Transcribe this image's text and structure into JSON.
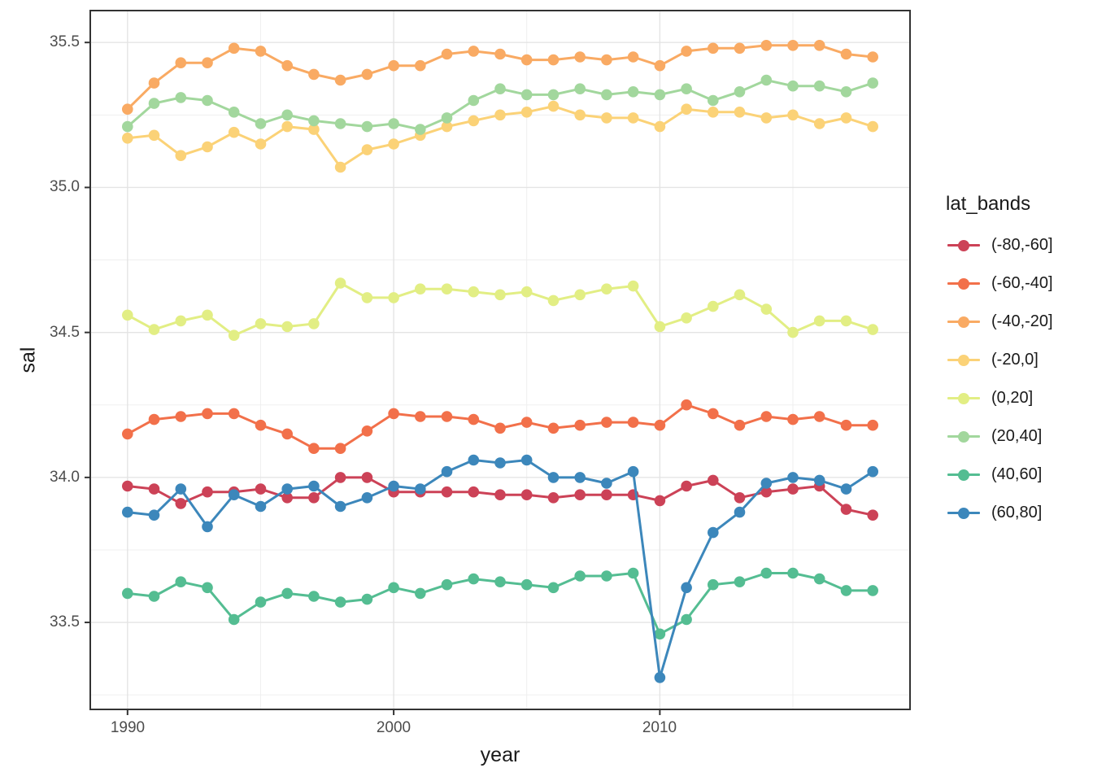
{
  "chart_data": {
    "type": "line",
    "title": "",
    "xlabel": "year",
    "ylabel": "sal",
    "legend": {
      "title": "lat_bands",
      "position": "right"
    },
    "grid": true,
    "x_domain": [
      1988.6,
      2019.4
    ],
    "y_domain": [
      33.2,
      35.61
    ],
    "x_ticks": {
      "major": [
        1990,
        2000,
        2010
      ],
      "minor": [
        1995,
        2005,
        2015
      ],
      "labels": [
        "1990",
        "2000",
        "2010"
      ]
    },
    "y_ticks": {
      "major": [
        33.5,
        34.0,
        34.5,
        35.0,
        35.5
      ],
      "minor": [
        33.25,
        33.75,
        34.25,
        34.75,
        35.25
      ],
      "labels": [
        "33.5",
        "34.0",
        "34.5",
        "35.0",
        "35.5"
      ]
    },
    "x": [
      1990,
      1991,
      1992,
      1993,
      1994,
      1995,
      1996,
      1997,
      1998,
      1999,
      2000,
      2001,
      2002,
      2003,
      2004,
      2005,
      2006,
      2007,
      2008,
      2009,
      2010,
      2011,
      2012,
      2013,
      2014,
      2015,
      2016,
      2017,
      2018
    ],
    "series": [
      {
        "name": "(-80,-60]",
        "color": "#cc4257",
        "values": [
          33.97,
          33.96,
          33.91,
          33.95,
          33.95,
          33.96,
          33.93,
          33.93,
          34.0,
          34.0,
          33.95,
          33.95,
          33.95,
          33.95,
          33.94,
          33.94,
          33.93,
          33.94,
          33.94,
          33.94,
          33.92,
          33.97,
          33.99,
          33.93,
          33.95,
          33.96,
          33.97,
          33.89,
          33.87
        ]
      },
      {
        "name": "(-60,-40]",
        "color": "#f2704a",
        "values": [
          34.15,
          34.2,
          34.21,
          34.22,
          34.22,
          34.18,
          34.15,
          34.1,
          34.1,
          34.16,
          34.22,
          34.21,
          34.21,
          34.2,
          34.17,
          34.19,
          34.17,
          34.18,
          34.19,
          34.19,
          34.18,
          34.25,
          34.22,
          34.18,
          34.21,
          34.2,
          34.21,
          34.18,
          34.18
        ]
      },
      {
        "name": "(-40,-20]",
        "color": "#f9aa63",
        "values": [
          35.27,
          35.36,
          35.43,
          35.43,
          35.48,
          35.47,
          35.42,
          35.39,
          35.37,
          35.39,
          35.42,
          35.42,
          35.46,
          35.47,
          35.46,
          35.44,
          35.44,
          35.45,
          35.44,
          35.45,
          35.42,
          35.47,
          35.48,
          35.48,
          35.49,
          35.49,
          35.49,
          35.46,
          35.45
        ]
      },
      {
        "name": "(-20,0]",
        "color": "#fbd277",
        "values": [
          35.17,
          35.18,
          35.11,
          35.14,
          35.19,
          35.15,
          35.21,
          35.2,
          35.07,
          35.13,
          35.15,
          35.18,
          35.21,
          35.23,
          35.25,
          35.26,
          35.28,
          35.25,
          35.24,
          35.24,
          35.21,
          35.27,
          35.26,
          35.26,
          35.24,
          35.25,
          35.22,
          35.24,
          35.21
        ]
      },
      {
        "name": "(0,20]",
        "color": "#e2ee84",
        "values": [
          34.56,
          34.51,
          34.54,
          34.56,
          34.49,
          34.53,
          34.52,
          34.53,
          34.67,
          34.62,
          34.62,
          34.65,
          34.65,
          34.64,
          34.63,
          34.64,
          34.61,
          34.63,
          34.65,
          34.66,
          34.52,
          34.55,
          34.59,
          34.63,
          34.58,
          34.5,
          34.54,
          34.54,
          34.51
        ]
      },
      {
        "name": "(20,40]",
        "color": "#a2d79d",
        "values": [
          35.21,
          35.29,
          35.31,
          35.3,
          35.26,
          35.22,
          35.25,
          35.23,
          35.22,
          35.21,
          35.22,
          35.2,
          35.24,
          35.3,
          35.34,
          35.32,
          35.32,
          35.34,
          35.32,
          35.33,
          35.32,
          35.34,
          35.3,
          35.33,
          35.37,
          35.35,
          35.35,
          35.33,
          35.36
        ]
      },
      {
        "name": "(40,60]",
        "color": "#54bd92",
        "values": [
          33.6,
          33.59,
          33.64,
          33.62,
          33.51,
          33.57,
          33.6,
          33.59,
          33.57,
          33.58,
          33.62,
          33.6,
          33.63,
          33.65,
          33.64,
          33.63,
          33.62,
          33.66,
          33.66,
          33.67,
          33.46,
          33.51,
          33.63,
          33.64,
          33.67,
          33.67,
          33.65,
          33.61,
          33.61
        ]
      },
      {
        "name": "(60,80]",
        "color": "#3c87bb",
        "values": [
          33.88,
          33.87,
          33.96,
          33.83,
          33.94,
          33.9,
          33.96,
          33.97,
          33.9,
          33.93,
          33.97,
          33.96,
          34.02,
          34.06,
          34.05,
          34.06,
          34.0,
          34.0,
          33.98,
          34.02,
          33.31,
          33.62,
          33.81,
          33.88,
          33.98,
          34.0,
          33.99,
          33.96,
          34.02
        ]
      }
    ]
  },
  "style": {
    "background": "#ffffff",
    "panel_fill": "#ffffff",
    "panel_border": "#333333",
    "grid_major": "#e4e4e4",
    "grid_minor": "#efefef",
    "tick_color": "#333333",
    "axis_text_color": "#4d4d4d",
    "title_text_color": "#1a1a1a"
  }
}
